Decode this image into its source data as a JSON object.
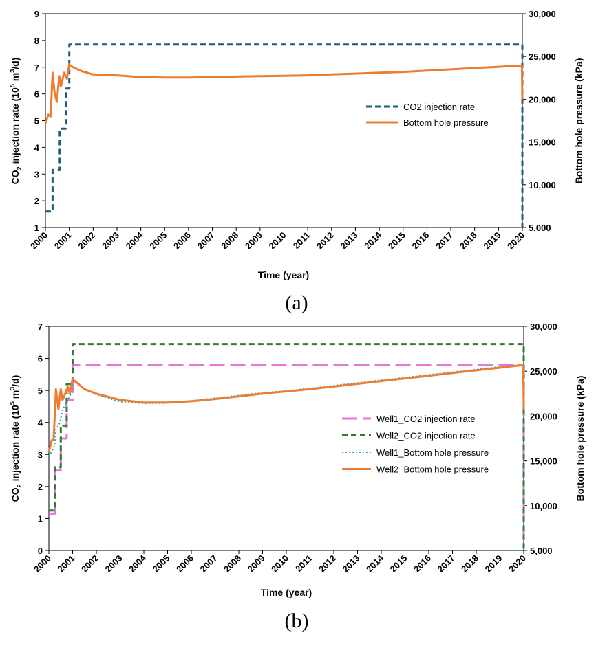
{
  "chart_data": [
    {
      "type": "line",
      "caption": "(a)",
      "xlabel": "Time (year)",
      "ylabel": "CO₂ injection rate (10⁵ m³/d)",
      "ylabel_parts": {
        "pre": "CO",
        "sub": "2",
        "mid": " injection rate (10",
        "sup1": "5",
        "mid2": " m",
        "sup2": "3",
        "post": "/d)"
      },
      "y2label": "Bottom hole pressure (kPa)",
      "xlim": [
        2000,
        2020
      ],
      "ylim": [
        1,
        9
      ],
      "y2lim": [
        5000,
        30000
      ],
      "x_ticks": [
        "2000",
        "2001",
        "2002",
        "2003",
        "2004",
        "2005",
        "2006",
        "2007",
        "2008",
        "2009",
        "2010",
        "2011",
        "2012",
        "2013",
        "2014",
        "2015",
        "2016",
        "2017",
        "2018",
        "2019",
        "2020"
      ],
      "y_ticks": [
        "1",
        "2",
        "3",
        "4",
        "5",
        "6",
        "7",
        "8",
        "9"
      ],
      "y2_ticks": [
        "5,000",
        "10,000",
        "15,000",
        "20,000",
        "25,000",
        "30,000"
      ],
      "series": [
        {
          "name": "CO2 injection rate",
          "axis": "left",
          "color": "#1f5c7a",
          "style": "dash",
          "x": [
            2000,
            2000.3,
            2000.3,
            2000.6,
            2000.6,
            2000.85,
            2000.85,
            2001.0,
            2001.0,
            2020.0,
            2020.0
          ],
          "y": [
            1.6,
            1.6,
            3.15,
            3.15,
            4.7,
            4.7,
            6.2,
            6.2,
            7.85,
            7.85,
            1.0
          ]
        },
        {
          "name": "Bottom hole pressure",
          "axis": "right",
          "color": "#ed7d31",
          "style": "solid",
          "x": [
            2000,
            2000.12,
            2000.22,
            2000.3,
            2000.38,
            2000.48,
            2000.58,
            2000.65,
            2000.78,
            2000.9,
            2001.0,
            2001.05,
            2001.5,
            2002,
            2003,
            2004,
            2005,
            2006,
            2007,
            2008,
            2009,
            2010,
            2011,
            2012,
            2013,
            2014,
            2015,
            2016,
            2017,
            2018,
            2019,
            2019.98,
            2020.0
          ],
          "y": [
            17200,
            18200,
            18000,
            23100,
            20800,
            19700,
            22700,
            21500,
            23100,
            22400,
            24100,
            23900,
            23300,
            22900,
            22800,
            22600,
            22550,
            22550,
            22600,
            22650,
            22700,
            22750,
            22800,
            22900,
            23000,
            23100,
            23200,
            23350,
            23500,
            23650,
            23800,
            23950,
            20000
          ]
        }
      ],
      "legend": [
        {
          "label": "CO2 injection rate",
          "color": "#1f5c7a",
          "style": "dash"
        },
        {
          "label": "Bottom hole pressure",
          "color": "#ed7d31",
          "style": "solid"
        }
      ]
    },
    {
      "type": "line",
      "caption": "(b)",
      "xlabel": "Time (year)",
      "ylabel": "CO₂ injection rate (10⁵ m³/d)",
      "ylabel_parts": {
        "pre": "CO",
        "sub": "2",
        "mid": " injection rate (10",
        "sup1": "5",
        "mid2": " m",
        "sup2": "3",
        "post": "/d)"
      },
      "y2label": "Bottom hole pressure (kPa)",
      "xlim": [
        2000,
        2020
      ],
      "ylim": [
        0,
        7
      ],
      "y2lim": [
        5000,
        30000
      ],
      "x_ticks": [
        "2000",
        "2001",
        "2002",
        "2003",
        "2004",
        "2005",
        "2006",
        "2007",
        "2008",
        "2009",
        "2010",
        "2011",
        "2012",
        "2013",
        "2014",
        "2015",
        "2016",
        "2017",
        "2018",
        "2019",
        "2020"
      ],
      "y_ticks": [
        "0",
        "1",
        "2",
        "3",
        "4",
        "5",
        "6",
        "7"
      ],
      "y2_ticks": [
        "5,000",
        "10,000",
        "15,000",
        "20,000",
        "25,000",
        "30,000"
      ],
      "series": [
        {
          "name": "Well1_CO2 injection rate",
          "axis": "left",
          "color": "#e377d8",
          "style": "longdash",
          "x": [
            2000,
            2000.25,
            2000.25,
            2000.5,
            2000.5,
            2000.75,
            2000.75,
            2001.0,
            2001.0,
            2020.0,
            2020.0
          ],
          "y": [
            1.15,
            1.15,
            2.5,
            2.5,
            3.5,
            3.5,
            4.7,
            4.7,
            5.8,
            5.8,
            0.2
          ]
        },
        {
          "name": "Well2_CO2 injection rate",
          "axis": "left",
          "color": "#2e7d32",
          "style": "dash",
          "x": [
            2000,
            2000.25,
            2000.25,
            2000.5,
            2000.5,
            2000.75,
            2000.75,
            2001.0,
            2001.0,
            2020.0,
            2020.0
          ],
          "y": [
            1.25,
            1.25,
            2.6,
            2.6,
            3.9,
            3.9,
            5.2,
            5.2,
            6.45,
            6.45,
            0.0
          ]
        },
        {
          "name": "Well1_Bottom hole pressure",
          "axis": "right",
          "color": "#2aa7c4",
          "style": "dot",
          "x": [
            2000,
            2000.15,
            2000.25,
            2000.3,
            2000.45,
            2000.6,
            2000.8,
            2000.95,
            2001.05,
            2001.5,
            2002,
            2003,
            2004,
            2005,
            2006,
            2007,
            2008,
            2009,
            2010,
            2011,
            2012,
            2013,
            2014,
            2015,
            2016,
            2017,
            2018,
            2019,
            2020
          ],
          "y": [
            15500,
            16200,
            16800,
            18500,
            19200,
            20800,
            21800,
            22600,
            24000,
            23000,
            22400,
            21600,
            21400,
            21450,
            21700,
            22000,
            22300,
            22600,
            22800,
            23100,
            23400,
            23700,
            24000,
            24300,
            24600,
            24900,
            25200,
            25500,
            25750
          ]
        },
        {
          "name": "Well2_Bottom hole pressure",
          "axis": "right",
          "color": "#ed7d31",
          "style": "solid",
          "x": [
            2000,
            2000.12,
            2000.2,
            2000.3,
            2000.4,
            2000.5,
            2000.58,
            2000.7,
            2000.8,
            2000.88,
            2001.0,
            2001.05,
            2001.5,
            2002,
            2003,
            2004,
            2005,
            2006,
            2007,
            2008,
            2009,
            2010,
            2011,
            2012,
            2013,
            2014,
            2015,
            2016,
            2017,
            2018,
            2019,
            2019.98,
            2020.0
          ],
          "y": [
            16000,
            17300,
            17300,
            23000,
            20800,
            23000,
            21800,
            22600,
            23300,
            22500,
            24200,
            24000,
            23000,
            22500,
            21800,
            21500,
            21500,
            21650,
            21900,
            22200,
            22500,
            22750,
            23000,
            23300,
            23600,
            23900,
            24200,
            24500,
            24800,
            25100,
            25400,
            25700,
            20800
          ]
        }
      ],
      "legend": [
        {
          "label": "Well1_CO2 injection rate",
          "color": "#e377d8",
          "style": "longdash"
        },
        {
          "label": "Well2_CO2 injection rate",
          "color": "#2e7d32",
          "style": "dash"
        },
        {
          "label": "Well1_Bottom hole pressure",
          "color": "#2aa7c4",
          "style": "dot"
        },
        {
          "label": "Well2_Bottom hole pressure",
          "color": "#ed7d31",
          "style": "solid"
        }
      ]
    }
  ]
}
